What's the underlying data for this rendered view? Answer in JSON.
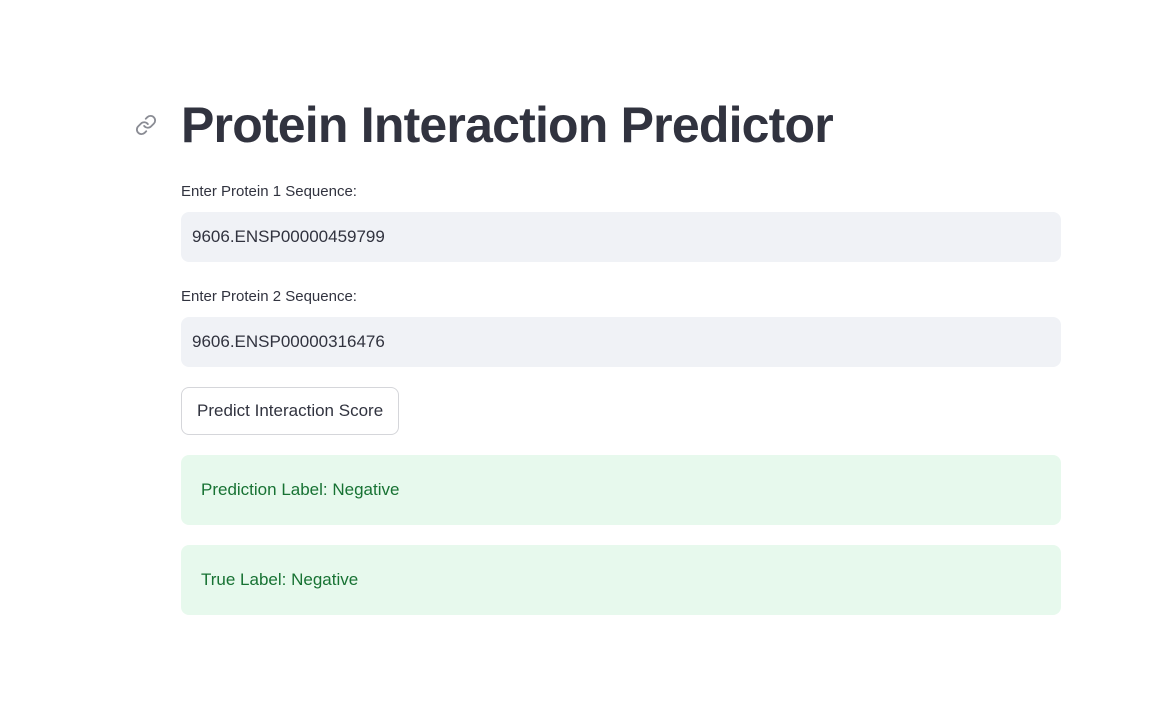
{
  "header": {
    "title": "Protein Interaction Predictor",
    "anchor_icon": "link-icon"
  },
  "form": {
    "protein1": {
      "label": "Enter Protein 1 Sequence:",
      "value": "9606.ENSP00000459799"
    },
    "protein2": {
      "label": "Enter Protein 2 Sequence:",
      "value": "9606.ENSP00000316476"
    },
    "predict_button_label": "Predict Interaction Score"
  },
  "results": {
    "prediction_label": "Prediction Label: Negative",
    "true_label": "True Label: Negative"
  },
  "colors": {
    "text": "#31333f",
    "input_bg": "#f0f2f6",
    "success_bg": "#e7f9ed",
    "success_text": "#177233"
  }
}
